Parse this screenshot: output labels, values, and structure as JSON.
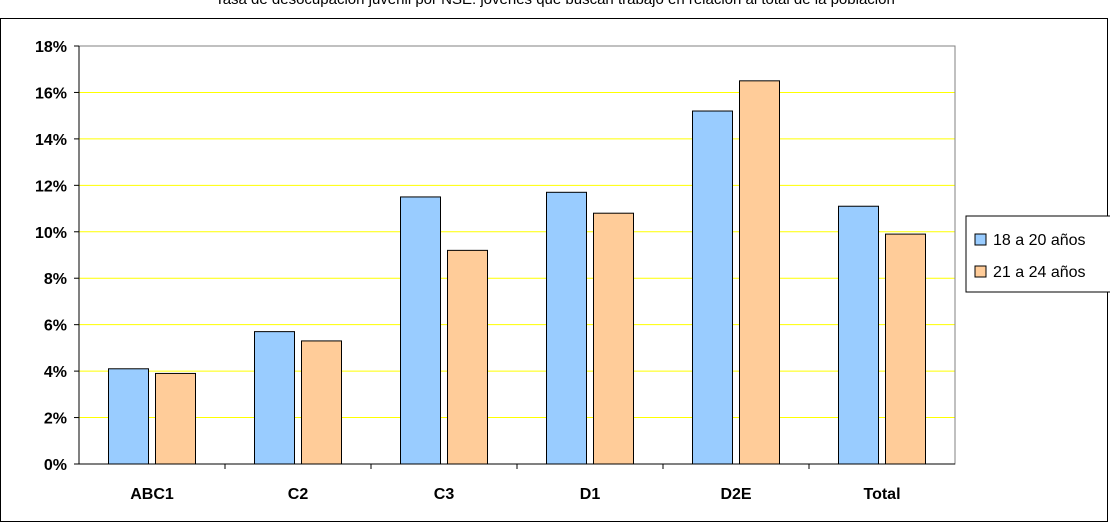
{
  "chart_data": {
    "type": "bar",
    "title": "Tasa de desocupación juvenil por NSE: jóvenes que buscan trabajo en relación al total de la población",
    "xlabel": "",
    "ylabel": "",
    "categories": [
      "ABC1",
      "C2",
      "C3",
      "D1",
      "D2E",
      "Total"
    ],
    "series": [
      {
        "name": "18 a 20 años",
        "color": "#99ccff",
        "values": [
          4.1,
          5.7,
          11.5,
          11.7,
          15.2,
          11.1
        ]
      },
      {
        "name": "21 a 24 años",
        "color": "#ffcc99",
        "values": [
          3.9,
          5.3,
          9.2,
          10.8,
          16.5,
          9.9
        ]
      }
    ],
    "ylim": [
      0,
      18
    ],
    "yticks": [
      "0%",
      "2%",
      "4%",
      "6%",
      "8%",
      "10%",
      "12%",
      "14%",
      "16%",
      "18%"
    ],
    "grid": true,
    "gridline_color": "#ffff00",
    "legend_position": "right"
  }
}
